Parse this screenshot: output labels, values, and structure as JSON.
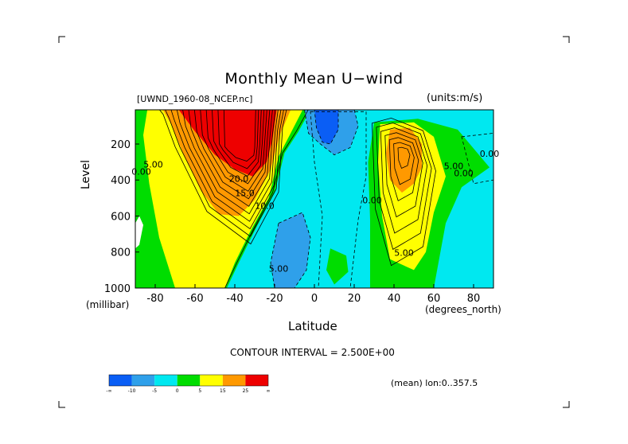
{
  "title": "Monthly Mean U−wind",
  "dataset": "[UWND_1960-08_NCEP.nc]",
  "units": "(units:m/s)",
  "contour_interval": "CONTOUR INTERVAL = 2.500E+00",
  "mean_info": "(mean) lon:0..357.5",
  "colors": {
    "neg_strong": "#0a5ef5",
    "neg_mid": "#2fa0ea",
    "neg_weak": "#00e8f0",
    "pos_0_5": "#00dd00",
    "pos_5_15": "#ffff00",
    "pos_15_25": "#ff9900",
    "pos_25_plus": "#ee0000",
    "line": "#000000"
  },
  "colorbar": {
    "labels": [
      "-∞",
      "-10",
      "-5",
      "0",
      "5",
      "15",
      "25",
      "∞"
    ],
    "colors": [
      "#0a5ef5",
      "#2fa0ea",
      "#00e8f0",
      "#00dd00",
      "#ffff00",
      "#ff9900",
      "#ee0000"
    ]
  },
  "chart_data": {
    "type": "heatmap",
    "title": "Monthly Mean U−wind",
    "xlabel": "Latitude",
    "x_units": "(degrees_north)",
    "ylabel": "Level",
    "y_units": "(millibar)",
    "xlim": [
      -90,
      90
    ],
    "ylim": [
      1000,
      10
    ],
    "x_ticks": [
      -80,
      -60,
      -40,
      -20,
      0,
      20,
      40,
      60,
      80
    ],
    "x_tick_labels": [
      "-80",
      "-60",
      "-40",
      "-20",
      "0",
      "20",
      "40",
      "60",
      "80"
    ],
    "y_ticks": [
      200,
      400,
      600,
      800,
      1000
    ],
    "y_tick_labels": [
      "200",
      "400",
      "600",
      "800",
      "1000"
    ],
    "contour_interval": 2.5,
    "features": [
      {
        "name": "southern-hemisphere-jet",
        "lat": -32,
        "level": 200,
        "max_value": 40
      },
      {
        "name": "northern-hemisphere-jet",
        "lat": 45,
        "level": 200,
        "max_value": 22.5
      },
      {
        "name": "tropical-easterlies",
        "lat": 0,
        "level": 200,
        "min_value": -12.5
      },
      {
        "name": "low-level-easterlies",
        "lat": -12,
        "level": 850,
        "min_value": -7.5
      }
    ],
    "contour_labels": [
      {
        "text": "20.0",
        "lat": -38,
        "level": 410
      },
      {
        "text": "15.0",
        "lat": -35,
        "level": 490
      },
      {
        "text": "10.0",
        "lat": -25,
        "level": 560
      },
      {
        "text": "5.00",
        "lat": -81,
        "level": 330
      },
      {
        "text": "0.00",
        "lat": -87,
        "level": 370
      },
      {
        "text": "5.00",
        "lat": -18,
        "level": 910
      },
      {
        "text": "0.00",
        "lat": 29,
        "level": 530
      },
      {
        "text": "5.00",
        "lat": 45,
        "level": 820
      },
      {
        "text": "5.00",
        "lat": 70,
        "level": 340
      },
      {
        "text": "0.00",
        "lat": 75,
        "level": 380
      },
      {
        "text": "0.00",
        "lat": 88,
        "level": 270
      }
    ]
  }
}
